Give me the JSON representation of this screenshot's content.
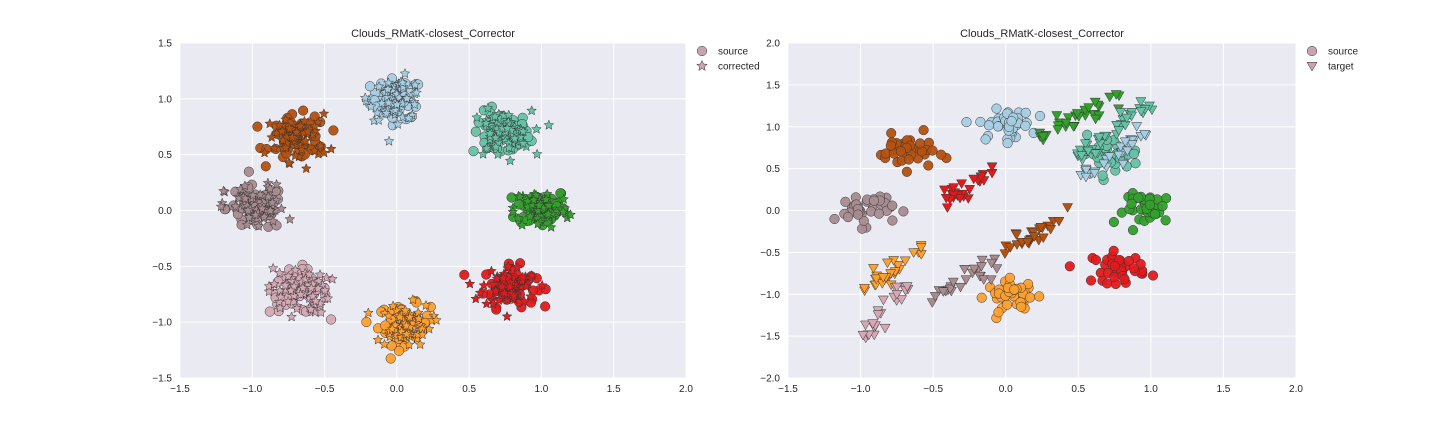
{
  "chart_data": [
    {
      "type": "scatter",
      "title": "Clouds_RMatK-closest_Corrector",
      "xlim": [
        -1.5,
        2.0
      ],
      "ylim": [
        -1.5,
        1.5
      ],
      "xticks": [
        -1.5,
        -1.0,
        -0.5,
        0.0,
        0.5,
        1.0,
        1.5,
        2.0
      ],
      "yticks": [
        -1.5,
        -1.0,
        -0.5,
        0.0,
        0.5,
        1.0,
        1.5
      ],
      "xtick_labels": [
        "−1.5",
        "−1.0",
        "−0.5",
        "0.0",
        "0.5",
        "1.0",
        "1.5",
        "2.0"
      ],
      "ytick_labels": [
        "−1.5",
        "−1.0",
        "−0.5",
        "0.0",
        "0.5",
        "1.0",
        "1.5"
      ],
      "grid": true,
      "legend": {
        "placement": "outside-right-top",
        "entries": [
          "source",
          "corrected"
        ]
      },
      "series": [
        {
          "name": "source",
          "marker": "circle"
        },
        {
          "name": "corrected",
          "marker": "star"
        }
      ],
      "clusters": [
        {
          "color": "#a6cee3",
          "x": 0.0,
          "y": 1.0,
          "n": 55,
          "spread": 0.09
        },
        {
          "color": "#66c2a5",
          "x": 0.72,
          "y": 0.68,
          "n": 60,
          "spread": 0.1
        },
        {
          "color": "#33a02c",
          "x": 1.0,
          "y": 0.02,
          "n": 60,
          "spread": 0.09
        },
        {
          "color": "#e31a1c",
          "x": 0.78,
          "y": -0.68,
          "n": 60,
          "spread": 0.09
        },
        {
          "color": "#ff9f2e",
          "x": 0.05,
          "y": -1.02,
          "n": 60,
          "spread": 0.09
        },
        {
          "color": "#d6a8b5",
          "x": -0.68,
          "y": -0.72,
          "n": 60,
          "spread": 0.1
        },
        {
          "color": "#a88c90",
          "x": -0.98,
          "y": 0.02,
          "n": 60,
          "spread": 0.1
        },
        {
          "color": "#b5510f",
          "x": -0.68,
          "y": 0.65,
          "n": 60,
          "spread": 0.1
        }
      ]
    },
    {
      "type": "scatter",
      "title": "Clouds_RMatK-closest_Corrector",
      "xlim": [
        -1.5,
        2.0
      ],
      "ylim": [
        -2.0,
        2.0
      ],
      "xticks": [
        -1.5,
        -1.0,
        -0.5,
        0.0,
        0.5,
        1.0,
        1.5,
        2.0
      ],
      "yticks": [
        -2.0,
        -1.5,
        -1.0,
        -0.5,
        0.0,
        0.5,
        1.0,
        1.5,
        2.0
      ],
      "xtick_labels": [
        "−1.5",
        "−1.0",
        "−0.5",
        "0.0",
        "0.5",
        "1.0",
        "1.5",
        "2.0"
      ],
      "ytick_labels": [
        "−2.0",
        "−1.5",
        "−1.0",
        "−0.5",
        "0.0",
        "0.5",
        "1.0",
        "1.5",
        "2.0"
      ],
      "grid": true,
      "legend": {
        "placement": "outside-right-top",
        "entries": [
          "source",
          "target"
        ]
      },
      "series": [
        {
          "name": "source",
          "marker": "circle"
        },
        {
          "name": "target",
          "marker": "triangle-down"
        }
      ],
      "clusters": [
        {
          "color": "#a6cee3",
          "x": 0.0,
          "y": 1.02,
          "n": 40,
          "spread": 0.09
        },
        {
          "color": "#66c2a5",
          "x": 0.72,
          "y": 0.68,
          "n": 40,
          "spread": 0.1
        },
        {
          "color": "#33a02c",
          "x": 1.0,
          "y": 0.02,
          "n": 40,
          "spread": 0.09
        },
        {
          "color": "#e31a1c",
          "x": 0.78,
          "y": -0.68,
          "n": 40,
          "spread": 0.09
        },
        {
          "color": "#ff9f2e",
          "x": 0.05,
          "y": -1.02,
          "n": 40,
          "spread": 0.09
        },
        {
          "color": "#a88c90",
          "x": -0.98,
          "y": 0.02,
          "n": 40,
          "spread": 0.1
        },
        {
          "color": "#b5510f",
          "x": -0.68,
          "y": 0.7,
          "n": 40,
          "spread": 0.1
        }
      ],
      "target_strips": [
        {
          "color": "#33a02c",
          "x0": 0.2,
          "y0": 0.85,
          "x1": 0.75,
          "y1": 1.35,
          "n": 30
        },
        {
          "color": "#66c2a5",
          "x0": 0.5,
          "y0": 0.65,
          "x1": 1.0,
          "y1": 1.3,
          "n": 35
        },
        {
          "color": "#a6cee3",
          "x0": 0.55,
          "y0": 0.4,
          "x1": 0.95,
          "y1": 0.9,
          "n": 30
        },
        {
          "color": "#e31a1c",
          "x0": -0.45,
          "y0": 0.0,
          "x1": -0.1,
          "y1": 0.48,
          "n": 25
        },
        {
          "color": "#b5510f",
          "x0": 0.0,
          "y0": -0.5,
          "x1": 0.45,
          "y1": 0.0,
          "n": 25
        },
        {
          "color": "#ff9f2e",
          "x0": -0.95,
          "y0": -0.95,
          "x1": -0.55,
          "y1": -0.4,
          "n": 30
        },
        {
          "color": "#a88c90",
          "x0": -0.55,
          "y0": -1.1,
          "x1": -0.05,
          "y1": -0.6,
          "n": 25
        },
        {
          "color": "#d6a8b5",
          "x0": -1.0,
          "y0": -1.5,
          "x1": -0.7,
          "y1": -0.9,
          "n": 25
        }
      ]
    }
  ]
}
